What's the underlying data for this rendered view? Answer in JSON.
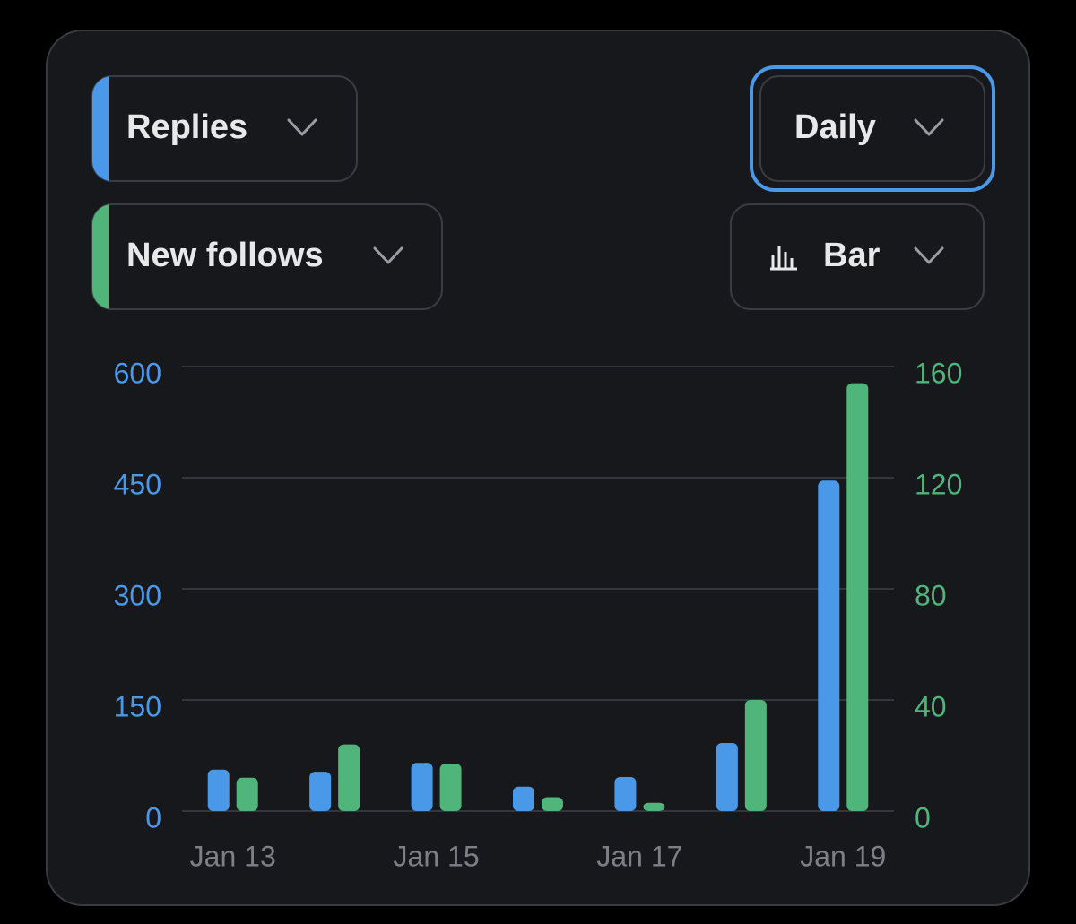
{
  "controls": {
    "interval": "Daily",
    "chart_style": "Bar"
  },
  "chart_data": {
    "type": "bar",
    "categories": [
      "Jan 13",
      null,
      "Jan 15",
      null,
      "Jan 17",
      null,
      "Jan 19"
    ],
    "series": [
      {
        "name": "Replies",
        "color": "#4a99e9",
        "values": [
          56,
          53,
          65,
          33,
          46,
          92,
          446
        ]
      },
      {
        "name": "New follows",
        "color": "#4fb57a",
        "axis": "y2",
        "values": [
          12,
          24,
          17,
          5,
          3,
          40,
          154
        ]
      }
    ],
    "ylim": [
      0,
      600
    ],
    "yticks": [
      0,
      150,
      300,
      450,
      600
    ],
    "y2lim": [
      0,
      160
    ],
    "y2ticks": [
      0,
      40,
      80,
      120,
      160
    ],
    "grid": true
  }
}
